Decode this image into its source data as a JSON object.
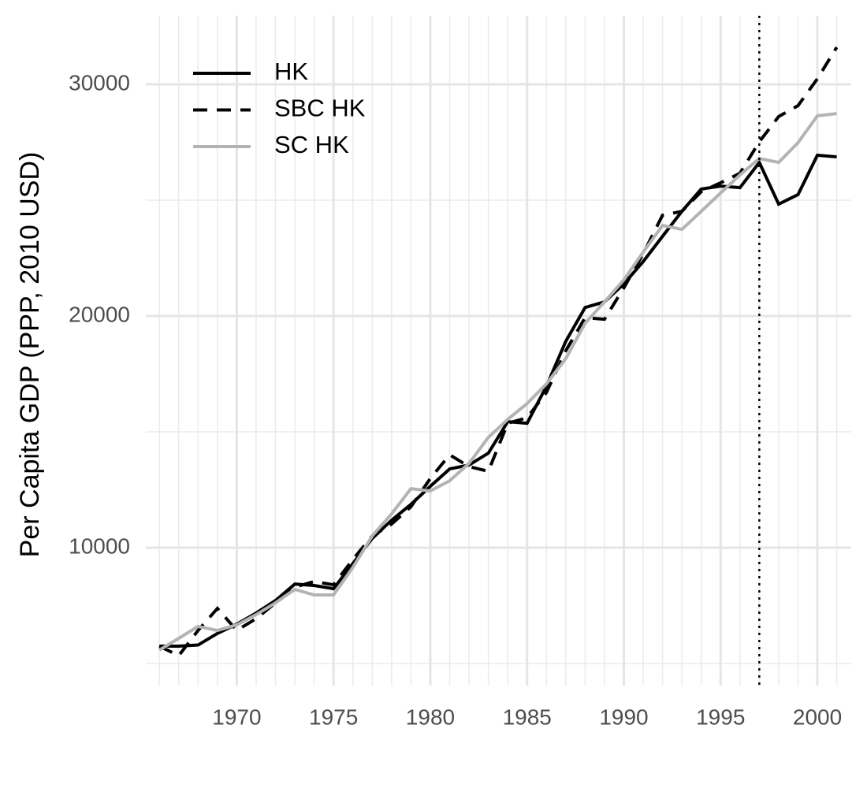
{
  "chart_data": {
    "type": "line",
    "y_label": "Per Capita GDP (PPP, 2010 USD)",
    "x": [
      1966,
      1967,
      1968,
      1969,
      1970,
      1971,
      1972,
      1973,
      1974,
      1975,
      1976,
      1977,
      1978,
      1979,
      1980,
      1981,
      1982,
      1983,
      1984,
      1985,
      1986,
      1987,
      1988,
      1989,
      1990,
      1991,
      1992,
      1993,
      1994,
      1995,
      1996,
      1997,
      1998,
      1999,
      2000,
      2001
    ],
    "series": [
      {
        "name": "HK",
        "color": "#000000",
        "linestyle": "solid",
        "values": [
          5750,
          5750,
          5800,
          6300,
          6700,
          7180,
          7720,
          8430,
          8370,
          8230,
          9320,
          10400,
          11190,
          11870,
          12650,
          13400,
          13570,
          14080,
          15440,
          15370,
          16970,
          18910,
          20370,
          20610,
          21390,
          22350,
          23440,
          24520,
          25480,
          25610,
          25540,
          26630,
          24830,
          25240,
          26940,
          26870
        ]
      },
      {
        "name": "SBC HK",
        "color": "#000000",
        "linestyle": "dashed",
        "values": [
          5750,
          5340,
          6430,
          7380,
          6430,
          6940,
          7620,
          8300,
          8540,
          8400,
          9490,
          10510,
          11020,
          11770,
          12990,
          14010,
          13500,
          13300,
          15370,
          15610,
          16700,
          18500,
          19930,
          19860,
          21220,
          22690,
          24350,
          24520,
          25370,
          25750,
          26160,
          27520,
          28610,
          29080,
          30240,
          31600
        ]
      },
      {
        "name": "SC HK",
        "color": "#b3b3b3",
        "linestyle": "solid",
        "values": [
          5580,
          6090,
          6600,
          6430,
          6670,
          7110,
          7620,
          8200,
          7960,
          7960,
          9150,
          10510,
          11460,
          12550,
          12450,
          12890,
          13640,
          14760,
          15540,
          16220,
          17070,
          18160,
          19690,
          20610,
          21560,
          22760,
          23910,
          23740,
          24520,
          25310,
          26090,
          26800,
          26630,
          27480,
          28640,
          28740
        ]
      }
    ],
    "xlim": [
      1965.3,
      2001.75
    ],
    "ylim": [
      4050,
      32960
    ],
    "xticks": [
      1970,
      1975,
      1980,
      1985,
      1990,
      1995,
      2000
    ],
    "yticks": [
      10000,
      20000,
      30000
    ],
    "yminor": [
      5000,
      15000,
      25000
    ],
    "vline": 1997,
    "vline_style": "dotted",
    "grid": true,
    "legend": "top-left"
  }
}
